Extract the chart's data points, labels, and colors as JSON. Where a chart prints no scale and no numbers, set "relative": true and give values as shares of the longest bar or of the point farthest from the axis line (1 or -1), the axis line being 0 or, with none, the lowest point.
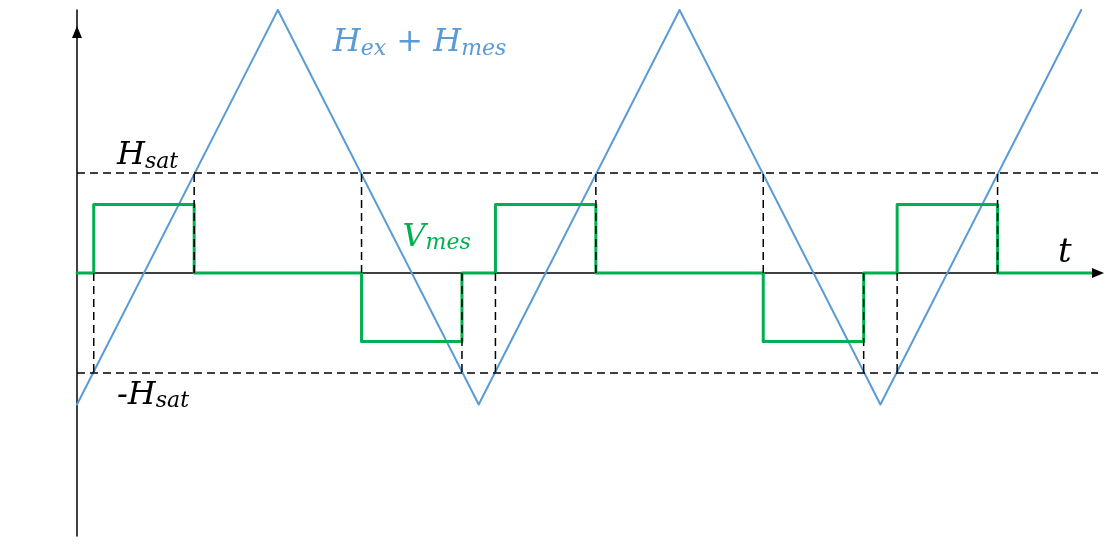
{
  "chart_data": {
    "type": "line",
    "relative": true,
    "xlabel": "t",
    "grid": false,
    "legend": false,
    "marker": "none",
    "categories": [
      null,
      null,
      null,
      null,
      null,
      null,
      null,
      null,
      null,
      null,
      null,
      null,
      null,
      null,
      null,
      null,
      null,
      null,
      null,
      null,
      null,
      null,
      null,
      null,
      null,
      null,
      null,
      null,
      null,
      null,
      null,
      null,
      null,
      null,
      null,
      null,
      null,
      null,
      null,
      null,
      null,
      null,
      null,
      null,
      null,
      null,
      null,
      null,
      null,
      null,
      null,
      null,
      null,
      null,
      null,
      null,
      null,
      null,
      null,
      null,
      null,
      null
    ],
    "series": [
      {
        "name": "H$_{ex}$ + H$_{mes}$",
        "color": "#5b9bd5",
        "values": [
          -0.5,
          null,
          null,
          null,
          null,
          null,
          null,
          null,
          null,
          null,
          null,
          null,
          1,
          null,
          null,
          null,
          null,
          null,
          null,
          null,
          null,
          null,
          null,
          null,
          -0.5,
          null,
          null,
          null,
          null,
          null,
          null,
          null,
          null,
          null,
          null,
          null,
          1,
          null,
          null,
          null,
          null,
          null,
          null,
          null,
          null,
          null,
          null,
          null,
          -0.5,
          null,
          null,
          null,
          null,
          null,
          null,
          null,
          null,
          null,
          null,
          null,
          1,
          null
        ]
      },
      {
        "name": "V$_{mes}$",
        "type": "step",
        "color": "#00b050",
        "values": [
          0,
          0.26,
          0.26,
          0.26,
          0.26,
          0.26,
          0.26,
          0,
          0,
          0,
          0,
          0,
          0,
          0,
          0,
          0,
          0,
          -0.26,
          -0.26,
          -0.26,
          -0.26,
          -0.26,
          -0.26,
          0,
          0,
          0.26,
          0.26,
          0.26,
          0.26,
          0.26,
          0.26,
          0,
          0,
          0,
          0,
          0,
          0,
          0,
          0,
          0,
          0,
          -0.26,
          -0.26,
          -0.26,
          -0.26,
          -0.26,
          -0.26,
          0,
          0,
          0.26,
          0.26,
          0.26,
          0.26,
          0.26,
          0.26,
          0,
          0,
          0,
          0,
          0,
          0,
          0
        ]
      }
    ],
    "ref_lines": [
      {
        "axis": "y",
        "value": 0.378,
        "label": "H$_{sat}$",
        "color": "#000000",
        "line_style": "dashed"
      },
      {
        "axis": "y",
        "value": -0.378,
        "label": "-H$_{sat}$",
        "color": "#000000",
        "line_style": "dashed"
      }
    ]
  }
}
